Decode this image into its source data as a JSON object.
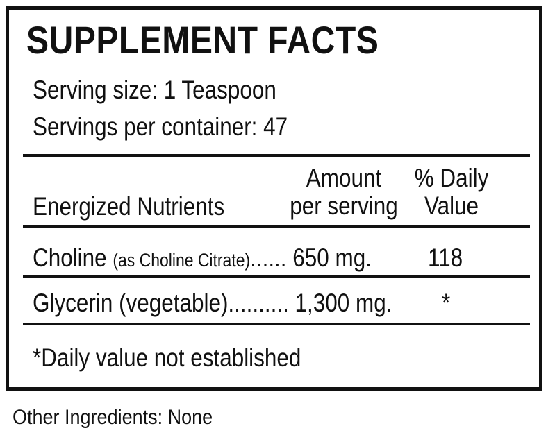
{
  "label": {
    "title": "SUPPLEMENT FACTS",
    "serving_size": "Serving size: 1 Teaspoon",
    "servings_per_container": "Servings per container: 47",
    "columns": {
      "nutrients": "Energized Nutrients",
      "amount_line1": "Amount",
      "amount_line2": "per serving",
      "dv_line1": "% Daily",
      "dv_line2": "Value"
    },
    "rows": [
      {
        "name": "Choline",
        "qualifier": "(as Choline Citrate)",
        "dots": "......",
        "amount": "650 mg.",
        "dv": "118"
      },
      {
        "name": "Glycerin (vegetable)",
        "dots": "..........",
        "amount": "1,300 mg.",
        "dv": "*"
      }
    ],
    "note": "*Daily value not established"
  },
  "other_ingredients": "Other Ingredients: None"
}
